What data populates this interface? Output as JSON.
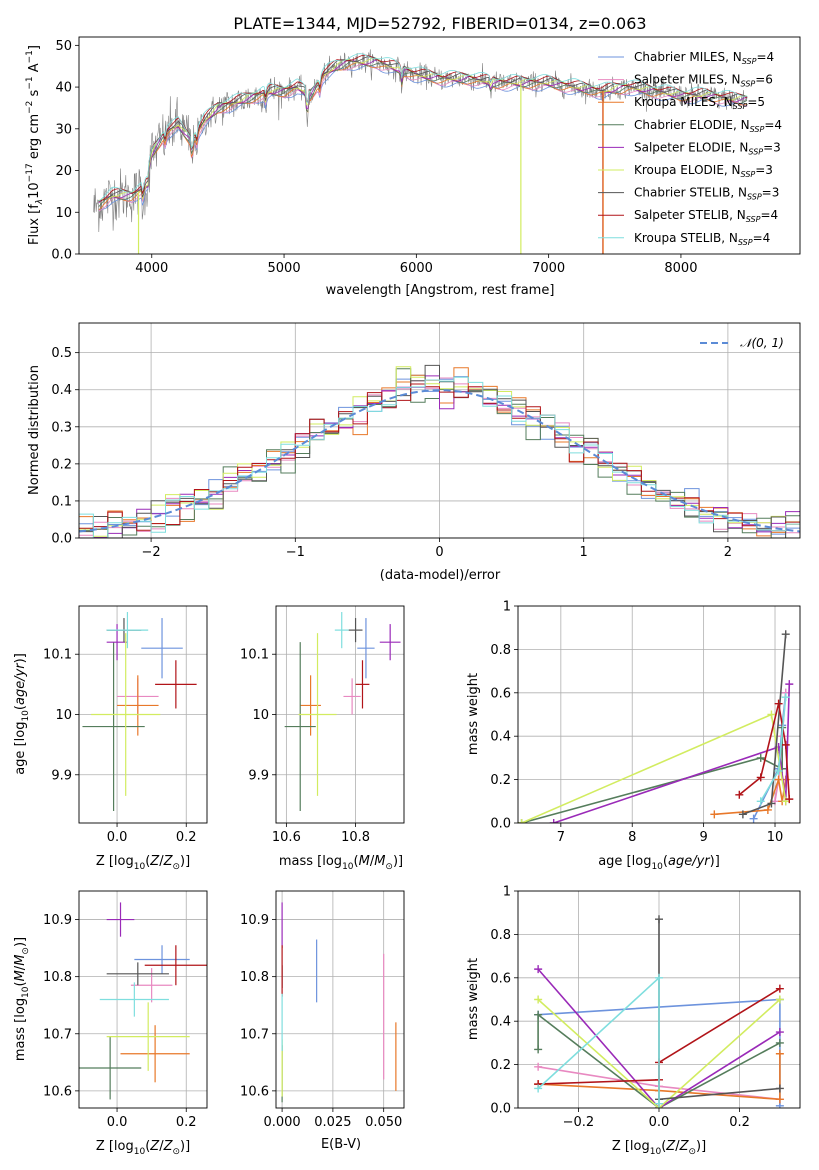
{
  "figure_title": "PLATE=1344, MJD=52792, FIBERID=0134, z=0.063",
  "colors": {
    "chabrier_miles": "#6d93dd",
    "salpeter_miles": "#e889c1",
    "kroupa_miles": "#e8782a",
    "chabrier_elodie": "#557d5c",
    "salpeter_elodie": "#9a2ab8",
    "kroupa_elodie": "#d2ec60",
    "chabrier_stelib": "#555555",
    "salpeter_stelib": "#b11419",
    "kroupa_stelib": "#7fdede",
    "data": "#7f7f7f",
    "grid": "#b0b0b0"
  },
  "chart_data": [
    {
      "id": "spectrum",
      "type": "line",
      "title": "",
      "xlabel": "wavelength [Angstrom, rest frame]",
      "ylabel": "Flux [f",
      "ylabel_parts": [
        "Flux [f",
        "λ",
        "10",
        "−17",
        " erg cm",
        "−2",
        " s",
        "−1",
        " A",
        "−1",
        "]"
      ],
      "xlim": [
        3450,
        8900
      ],
      "ylim": [
        0,
        52
      ],
      "xticks": [
        4000,
        5000,
        6000,
        7000,
        8000
      ],
      "yticks": [
        0,
        10,
        20,
        30,
        40,
        50
      ],
      "grid": false,
      "legend_position": "top-right",
      "continuum": {
        "x": [
          3560,
          3700,
          3850,
          3950,
          4000,
          4100,
          4200,
          4300,
          4400,
          4500,
          4600,
          4700,
          4800,
          4900,
          5000,
          5100,
          5200,
          5300,
          5400,
          5500,
          5600,
          5700,
          5800,
          5900,
          6000,
          6200,
          6400,
          6600,
          6800,
          7000,
          7200,
          7400,
          7600,
          7800,
          8000,
          8200,
          8400,
          8500
        ],
        "y": [
          11,
          14,
          14,
          16,
          24,
          29,
          31,
          27,
          32,
          35,
          36,
          37,
          38,
          39,
          39,
          40,
          38,
          43,
          45,
          46,
          46,
          46,
          45,
          44,
          43,
          42,
          42,
          41,
          41,
          41,
          40,
          39,
          40,
          39,
          38,
          38,
          37,
          37
        ]
      },
      "series": [
        {
          "name": "Chabrier MILES",
          "nssp": "4",
          "color_key": "chabrier_miles"
        },
        {
          "name": "Salpeter MILES",
          "nssp": "6",
          "color_key": "salpeter_miles"
        },
        {
          "name": "Kroupa MILES",
          "nssp": "5",
          "color_key": "kroupa_miles"
        },
        {
          "name": "Chabrier ELODIE",
          "nssp": "4",
          "color_key": "chabrier_elodie"
        },
        {
          "name": "Salpeter ELODIE",
          "nssp": "3",
          "color_key": "salpeter_elodie"
        },
        {
          "name": "Kroupa ELODIE",
          "nssp": "3",
          "color_key": "kroupa_elodie"
        },
        {
          "name": "Chabrier STELIB",
          "nssp": "3",
          "color_key": "chabrier_stelib"
        },
        {
          "name": "Salpeter STELIB",
          "nssp": "4",
          "color_key": "salpeter_stelib"
        },
        {
          "name": "Kroupa STELIB",
          "nssp": "4",
          "color_key": "kroupa_stelib"
        }
      ],
      "legend_label_prefix": "N",
      "legend_label_sub": "SSP"
    },
    {
      "id": "residuals",
      "type": "line",
      "xlabel": "(data-model)/error",
      "ylabel": "Normed distribution",
      "xlim": [
        -2.5,
        2.5
      ],
      "ylim": [
        0,
        0.58
      ],
      "xticks": [
        -2,
        -1,
        0,
        1,
        2
      ],
      "yticks": [
        0.0,
        0.1,
        0.2,
        0.3,
        0.4,
        0.5
      ],
      "grid": true,
      "legend_position": "top-right",
      "legend_label": "𝒩(0, 1)",
      "reference": {
        "mean": 0,
        "sigma": 1
      },
      "bin_width": 0.1
    },
    {
      "id": "age_vs_Z",
      "type": "scatter",
      "xlabel": "Z [log10(Z/Z⊙)]",
      "ylabel": "age  [log10(age/yr)]",
      "xlim": [
        -0.11,
        0.26
      ],
      "ylim": [
        9.82,
        10.18
      ],
      "xticks": [
        0.0,
        0.2
      ],
      "yticks": [
        9.9,
        10.0,
        10.1
      ],
      "grid": true,
      "points": [
        {
          "color_key": "chabrier_miles",
          "x": 0.13,
          "y": 10.11,
          "xerr": 0.06,
          "yerr": 0.05
        },
        {
          "color_key": "salpeter_miles",
          "x": 0.06,
          "y": 10.03,
          "xerr": 0.06,
          "yerr": 0.03
        },
        {
          "color_key": "kroupa_miles",
          "x": 0.06,
          "y": 10.015,
          "xerr": 0.06,
          "yerr": 0.05
        },
        {
          "color_key": "chabrier_elodie",
          "x": -0.01,
          "y": 9.98,
          "xerr": 0.09,
          "yerr": 0.14
        },
        {
          "color_key": "salpeter_elodie",
          "x": 0.0,
          "y": 10.12,
          "xerr": 0.03,
          "yerr": 0.03
        },
        {
          "color_key": "kroupa_elodie",
          "x": 0.025,
          "y": 10.0,
          "xerr": 0.1,
          "yerr": 0.135
        },
        {
          "color_key": "chabrier_stelib",
          "x": 0.02,
          "y": 10.14,
          "xerr": 0.05,
          "yerr": 0.02
        },
        {
          "color_key": "salpeter_stelib",
          "x": 0.17,
          "y": 10.05,
          "xerr": 0.06,
          "yerr": 0.04
        },
        {
          "color_key": "kroupa_stelib",
          "x": 0.03,
          "y": 10.14,
          "xerr": 0.06,
          "yerr": 0.03
        }
      ]
    },
    {
      "id": "age_vs_mass",
      "type": "scatter",
      "xlabel": "mass [log10(M/M⊙)]",
      "ylabel": "",
      "xlim": [
        10.57,
        10.94
      ],
      "ylim": [
        9.82,
        10.18
      ],
      "xticks": [
        10.6,
        10.8
      ],
      "yticks": [
        9.9,
        10.0,
        10.1
      ],
      "grid": true,
      "points": [
        {
          "color_key": "chabrier_miles",
          "x": 10.83,
          "y": 10.11,
          "xerr": 0.025,
          "yerr": 0.05
        },
        {
          "color_key": "salpeter_miles",
          "x": 10.79,
          "y": 10.03,
          "xerr": 0.025,
          "yerr": 0.03
        },
        {
          "color_key": "kroupa_miles",
          "x": 10.67,
          "y": 10.015,
          "xerr": 0.03,
          "yerr": 0.05
        },
        {
          "color_key": "chabrier_elodie",
          "x": 10.64,
          "y": 9.98,
          "xerr": 0.045,
          "yerr": 0.14
        },
        {
          "color_key": "salpeter_elodie",
          "x": 10.9,
          "y": 10.12,
          "xerr": 0.03,
          "yerr": 0.03
        },
        {
          "color_key": "kroupa_elodie",
          "x": 10.69,
          "y": 10.0,
          "xerr": 0.055,
          "yerr": 0.135
        },
        {
          "color_key": "chabrier_stelib",
          "x": 10.8,
          "y": 10.14,
          "xerr": 0.02,
          "yerr": 0.02
        },
        {
          "color_key": "salpeter_stelib",
          "x": 10.82,
          "y": 10.05,
          "xerr": 0.02,
          "yerr": 0.04
        },
        {
          "color_key": "kroupa_stelib",
          "x": 10.76,
          "y": 10.14,
          "xerr": 0.02,
          "yerr": 0.03
        }
      ]
    },
    {
      "id": "weight_vs_age",
      "type": "line",
      "xlabel": "age  [log10(age/yr)]",
      "ylabel": "mass weight",
      "xlim": [
        6.4,
        10.35
      ],
      "ylim": [
        0,
        1.0
      ],
      "xticks": [
        7,
        8,
        9,
        10
      ],
      "yticks": [
        0.0,
        0.2,
        0.4,
        0.6,
        0.8,
        1.0
      ],
      "grid": true,
      "series": [
        {
          "color_key": "chabrier_miles",
          "x": [
            9.7,
            10.05,
            10.1,
            10.15
          ],
          "y": [
            0.02,
            0.25,
            0.45,
            0.6
          ]
        },
        {
          "color_key": "salpeter_miles",
          "x": [
            10.0,
            10.05,
            10.1,
            10.15
          ],
          "y": [
            0.1,
            0.2,
            0.4,
            0.6
          ]
        },
        {
          "color_key": "kroupa_miles",
          "x": [
            9.15,
            9.9,
            10.05,
            10.1,
            10.15
          ],
          "y": [
            0.04,
            0.06,
            0.2,
            0.1,
            0.2
          ]
        },
        {
          "color_key": "chabrier_elodie",
          "x": [
            6.45,
            9.8,
            10.1,
            10.1
          ],
          "y": [
            0.0,
            0.3,
            0.25,
            0.44
          ]
        },
        {
          "color_key": "salpeter_elodie",
          "x": [
            6.9,
            10.05,
            10.15,
            10.2
          ],
          "y": [
            0.0,
            0.35,
            0.1,
            0.64
          ]
        },
        {
          "color_key": "kroupa_elodie",
          "x": [
            6.45,
            9.95,
            10.15
          ],
          "y": [
            0.0,
            0.5,
            0.1
          ]
        },
        {
          "color_key": "chabrier_stelib",
          "x": [
            9.55,
            9.95,
            10.15
          ],
          "y": [
            0.04,
            0.09,
            0.87
          ]
        },
        {
          "color_key": "salpeter_stelib",
          "x": [
            9.5,
            9.8,
            10.05,
            10.15,
            10.2
          ],
          "y": [
            0.13,
            0.21,
            0.55,
            0.36,
            0.11
          ]
        },
        {
          "color_key": "kroupa_stelib",
          "x": [
            9.8,
            10.05,
            10.15
          ],
          "y": [
            0.1,
            0.24,
            0.58
          ]
        }
      ]
    },
    {
      "id": "mass_vs_Z",
      "type": "scatter",
      "xlabel": "Z [log10(Z/Z⊙)]",
      "ylabel": "mass [log10(M/M⊙)]",
      "xlim": [
        -0.11,
        0.26
      ],
      "ylim": [
        10.57,
        10.95
      ],
      "xticks": [
        0.0,
        0.2
      ],
      "yticks": [
        10.6,
        10.7,
        10.8,
        10.9
      ],
      "grid": true,
      "points": [
        {
          "color_key": "chabrier_miles",
          "x": 0.13,
          "y": 10.83,
          "xerr": 0.08,
          "yerr": 0.025
        },
        {
          "color_key": "salpeter_miles",
          "x": 0.1,
          "y": 10.785,
          "xerr": 0.06,
          "yerr": 0.03
        },
        {
          "color_key": "kroupa_miles",
          "x": 0.11,
          "y": 10.665,
          "xerr": 0.1,
          "yerr": 0.05
        },
        {
          "color_key": "chabrier_elodie",
          "x": -0.02,
          "y": 10.64,
          "xerr": 0.09,
          "yerr": 0.055
        },
        {
          "color_key": "salpeter_elodie",
          "x": 0.01,
          "y": 10.9,
          "xerr": 0.04,
          "yerr": 0.03
        },
        {
          "color_key": "kroupa_elodie",
          "x": 0.09,
          "y": 10.695,
          "xerr": 0.12,
          "yerr": 0.06
        },
        {
          "color_key": "chabrier_stelib",
          "x": 0.06,
          "y": 10.805,
          "xerr": 0.09,
          "yerr": 0.02
        },
        {
          "color_key": "salpeter_stelib",
          "x": 0.17,
          "y": 10.82,
          "xerr": 0.09,
          "yerr": 0.035
        },
        {
          "color_key": "kroupa_stelib",
          "x": 0.05,
          "y": 10.76,
          "xerr": 0.1,
          "yerr": 0.03
        }
      ]
    },
    {
      "id": "mass_vs_ebv",
      "type": "scatter",
      "xlabel": "E(B-V)",
      "ylabel": "",
      "xlim": [
        -0.003,
        0.06
      ],
      "ylim": [
        10.57,
        10.95
      ],
      "xticks": [
        0.0,
        0.025,
        0.05
      ],
      "yticks": [
        10.6,
        10.7,
        10.8,
        10.9
      ],
      "grid": true,
      "points": [
        {
          "color_key": "chabrier_miles",
          "x": 0.017,
          "y": 10.81,
          "xerr": 0.0,
          "yerr": 0.055
        },
        {
          "color_key": "salpeter_miles",
          "x": 0.05,
          "y": 10.73,
          "xerr": 0.0,
          "yerr": 0.11
        },
        {
          "color_key": "kroupa_miles",
          "x": 0.056,
          "y": 10.66,
          "xerr": 0.0,
          "yerr": 0.06
        },
        {
          "color_key": "chabrier_elodie",
          "x": 0.0,
          "y": 10.63,
          "xerr": 0.0,
          "yerr": 0.05
        },
        {
          "color_key": "salpeter_elodie",
          "x": 0.0,
          "y": 10.89,
          "xerr": 0.0,
          "yerr": 0.04
        },
        {
          "color_key": "kroupa_elodie",
          "x": 0.0,
          "y": 10.64,
          "xerr": 0.0,
          "yerr": 0.05
        },
        {
          "color_key": "chabrier_stelib",
          "x": 0.0,
          "y": 10.8,
          "xerr": 0.0,
          "yerr": 0.02
        },
        {
          "color_key": "salpeter_stelib",
          "x": 0.0,
          "y": 10.81,
          "xerr": 0.0,
          "yerr": 0.045
        },
        {
          "color_key": "kroupa_stelib",
          "x": 0.0,
          "y": 10.72,
          "xerr": 0.0,
          "yerr": 0.05
        }
      ]
    },
    {
      "id": "weight_vs_Z",
      "type": "line",
      "xlabel": "Z [log10(Z/Z⊙)]",
      "ylabel": "mass weight",
      "xlim": [
        -0.35,
        0.35
      ],
      "ylim": [
        0,
        1.0
      ],
      "xticks": [
        -0.2,
        0.0,
        0.2
      ],
      "yticks": [
        0.0,
        0.2,
        0.4,
        0.6,
        0.8,
        1.0
      ],
      "grid": true,
      "series": [
        {
          "color_key": "chabrier_miles",
          "x": [
            -0.3,
            0.3,
            0.3
          ],
          "y": [
            0.43,
            0.5,
            0.01
          ]
        },
        {
          "color_key": "salpeter_miles",
          "x": [
            -0.3,
            0.0,
            0.3
          ],
          "y": [
            0.19,
            0.1,
            0.04
          ]
        },
        {
          "color_key": "kroupa_miles",
          "x": [
            -0.3,
            0.0,
            0.3,
            0.3
          ],
          "y": [
            0.11,
            0.08,
            0.04,
            0.25
          ]
        },
        {
          "color_key": "chabrier_elodie",
          "x": [
            -0.3,
            -0.3,
            0.0,
            0.3
          ],
          "y": [
            0.27,
            0.43,
            0.0,
            0.3
          ]
        },
        {
          "color_key": "salpeter_elodie",
          "x": [
            -0.3,
            0.0,
            0.3
          ],
          "y": [
            0.64,
            0.0,
            0.35
          ]
        },
        {
          "color_key": "kroupa_elodie",
          "x": [
            -0.3,
            0.0,
            0.3
          ],
          "y": [
            0.5,
            0.0,
            0.5
          ]
        },
        {
          "color_key": "chabrier_stelib",
          "x": [
            0.0,
            0.0,
            0.3
          ],
          "y": [
            0.87,
            0.04,
            0.09
          ]
        },
        {
          "color_key": "salpeter_stelib",
          "x": [
            -0.3,
            0.0,
            0.0,
            0.3
          ],
          "y": [
            0.11,
            0.13,
            0.21,
            0.55
          ]
        },
        {
          "color_key": "kroupa_stelib",
          "x": [
            -0.3,
            0.0,
            0.0
          ],
          "y": [
            0.09,
            0.6,
            0.02
          ]
        }
      ]
    }
  ]
}
